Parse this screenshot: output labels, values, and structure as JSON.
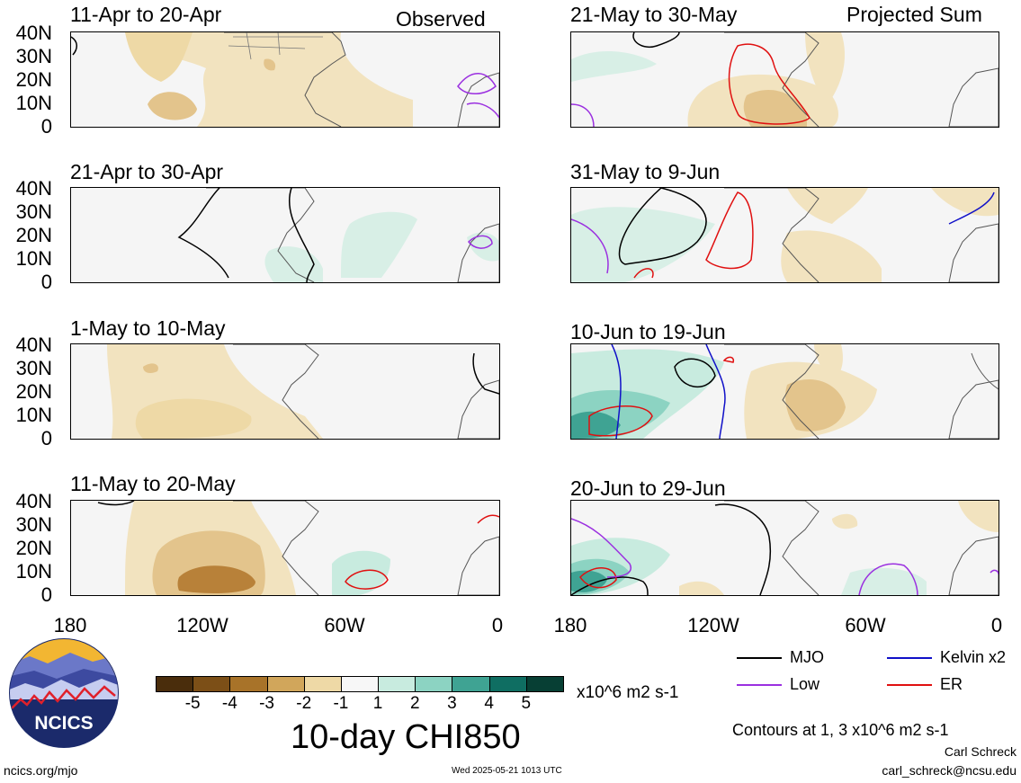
{
  "left_column": {
    "header_tag": "Observed",
    "panels": [
      {
        "title": "11-Apr to 20-Apr"
      },
      {
        "title": "21-Apr to 30-Apr"
      },
      {
        "title": "1-May to 10-May"
      },
      {
        "title": "11-May to 20-May"
      }
    ]
  },
  "right_column": {
    "header_tag": "Projected Sum",
    "panels": [
      {
        "title": "21-May to 30-May"
      },
      {
        "title": "31-May to 9-Jun"
      },
      {
        "title": "10-Jun to 19-Jun"
      },
      {
        "title": "20-Jun to 29-Jun"
      }
    ]
  },
  "axes": {
    "lat_labels": [
      "40N",
      "30N",
      "20N",
      "10N",
      "0"
    ],
    "lon_labels": [
      "180",
      "120W",
      "60W",
      "0"
    ]
  },
  "colorbar": {
    "labels": [
      "-5",
      "-4",
      "-3",
      "-2",
      "-1",
      "1",
      "2",
      "3",
      "4",
      "5"
    ],
    "colors": [
      "#4a2d0c",
      "#7c4f17",
      "#a87329",
      "#d1a65b",
      "#eed9a6",
      "#f7f7f7",
      "#c8ebdf",
      "#8cd3c2",
      "#3fa393",
      "#0f6e62",
      "#073f34"
    ],
    "units": "x10^6 m2 s-1",
    "title": "10-day CHI850"
  },
  "legend": {
    "items": [
      {
        "label": "MJO",
        "color": "#000000"
      },
      {
        "label": "Kelvin x2",
        "color": "#1010c8"
      },
      {
        "label": "Low",
        "color": "#9b30e0"
      },
      {
        "label": "ER",
        "color": "#e01010"
      }
    ],
    "contour_note": "Contours at 1, 3 x10^6 m2 s-1"
  },
  "logo": {
    "text": "NCICS"
  },
  "footer": {
    "url": "ncics.org/mjo",
    "timestamp": "Wed 2025-05-21 1013 UTC",
    "author": "Carl Schreck",
    "email": "carl_schreck@ncsu.edu"
  }
}
